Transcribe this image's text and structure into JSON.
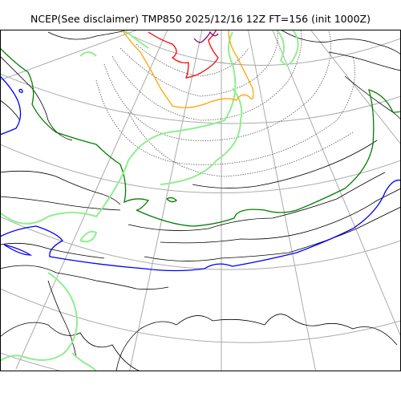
{
  "title": "NCEP(See disclaimer) TMP850 2025/12/16 12Z FT=156 (init 1000Z)",
  "colors": {
    "background": "#ffffff",
    "frame": "#000000",
    "graticule": "#aaaaaa",
    "coastline": "#000000",
    "isotherm_dotted": "#555555",
    "contour_light_green": "#90ee90",
    "contour_dark_green": "#008000",
    "contour_blue": "#0000ff",
    "contour_orange": "#ffa500",
    "contour_red": "#ff0000",
    "contour_purple": "#800080"
  },
  "legend": "none"
}
